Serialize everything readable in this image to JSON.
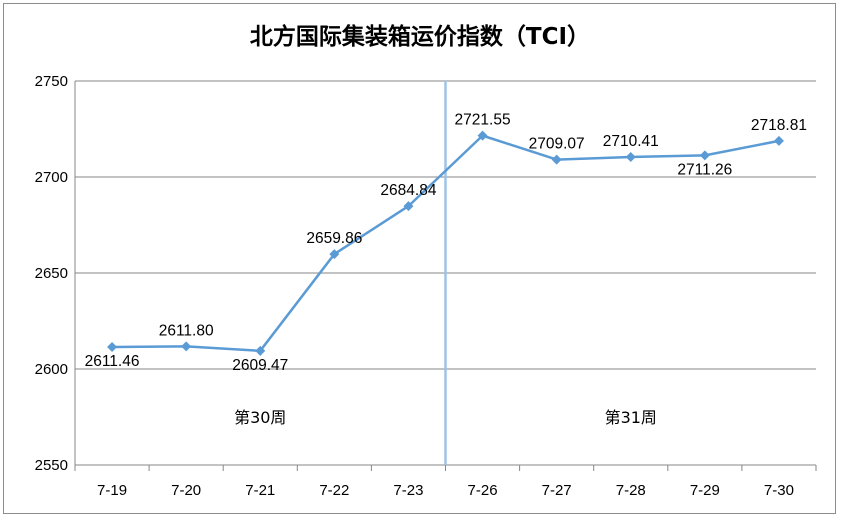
{
  "chart_data": {
    "type": "line",
    "title": "北方国际集装箱运价指数（TCI）",
    "xlabel": "",
    "ylabel": "",
    "categories": [
      "7-19",
      "7-20",
      "7-21",
      "7-22",
      "7-23",
      "7-26",
      "7-27",
      "7-28",
      "7-29",
      "7-30"
    ],
    "series": [
      {
        "values": [
          2611.46,
          2611.8,
          2609.47,
          2659.86,
          2684.84,
          2721.55,
          2709.07,
          2710.41,
          2711.26,
          2718.81
        ],
        "labels": [
          "2611.46",
          "2611.80",
          "2609.47",
          "2659.86",
          "2684.84",
          "2721.55",
          "2709.07",
          "2710.41",
          "2711.26",
          "2718.81"
        ],
        "label_positions": [
          "below",
          "above",
          "below",
          "above",
          "above",
          "above",
          "above",
          "above",
          "below",
          "above"
        ]
      }
    ],
    "ylim": [
      2550,
      2750
    ],
    "yticks": [
      2550,
      2600,
      2650,
      2700,
      2750
    ],
    "grid": true,
    "legend": "none",
    "line_color": "#5b9bd5",
    "divider_color": "#9dc3e6",
    "divider_after_category": "7-23",
    "week_labels": [
      {
        "text": "第30周",
        "category": "7-21"
      },
      {
        "text": "第31周",
        "category": "7-28"
      }
    ]
  }
}
